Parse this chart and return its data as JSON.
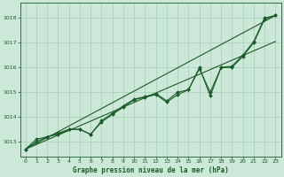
{
  "xlabel": "Graphe pression niveau de la mer (hPa)",
  "xlim": [
    -0.5,
    23.5
  ],
  "ylim": [
    1012.4,
    1018.6
  ],
  "yticks": [
    1013,
    1014,
    1015,
    1016,
    1017,
    1018
  ],
  "xticks": [
    0,
    1,
    2,
    3,
    4,
    5,
    6,
    7,
    8,
    9,
    10,
    11,
    12,
    13,
    14,
    15,
    16,
    17,
    18,
    19,
    20,
    21,
    22,
    23
  ],
  "bg_color": "#cce8d8",
  "grid_color": "#aaccbb",
  "line_color": "#1a5c28",
  "trend1_x": [
    0,
    23
  ],
  "trend1_y": [
    1012.7,
    1017.05
  ],
  "trend2_x": [
    0,
    23
  ],
  "trend2_y": [
    1012.7,
    1018.1
  ],
  "line1_x": [
    0,
    1,
    2,
    3,
    4,
    5,
    6,
    7,
    8,
    9,
    10,
    11,
    12,
    13,
    14,
    15,
    16,
    17,
    18,
    19,
    20,
    21,
    22,
    23
  ],
  "line1_y": [
    1012.7,
    1013.1,
    1013.2,
    1013.35,
    1013.5,
    1013.5,
    1013.3,
    1013.85,
    1014.15,
    1014.45,
    1014.72,
    1014.82,
    1014.95,
    1014.65,
    1015.0,
    1015.1,
    1016.0,
    1014.85,
    1016.0,
    1016.05,
    1016.5,
    1017.05,
    1018.0,
    1018.1
  ],
  "line2_x": [
    0,
    1,
    2,
    3,
    4,
    5,
    6,
    7,
    8,
    9,
    10,
    11,
    12,
    13,
    14,
    15,
    16,
    17,
    18,
    19,
    20,
    21,
    22,
    23
  ],
  "line2_y": [
    1012.7,
    1013.0,
    1013.2,
    1013.3,
    1013.5,
    1013.5,
    1013.3,
    1013.8,
    1014.1,
    1014.4,
    1014.7,
    1014.8,
    1014.9,
    1014.6,
    1014.9,
    1015.1,
    1015.95,
    1015.0,
    1016.0,
    1016.0,
    1016.45,
    1017.0,
    1017.95,
    1018.1
  ]
}
